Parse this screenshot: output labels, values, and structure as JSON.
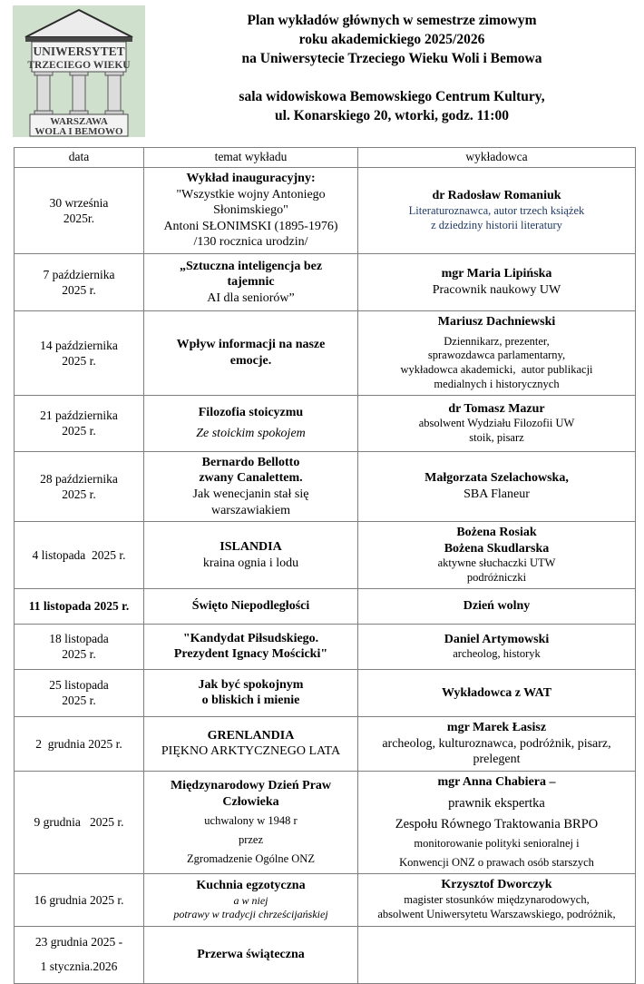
{
  "colors": {
    "accent_blue": "#1F3864",
    "logo_bg": "#cfe0cc",
    "table_border": "#7f7f7f"
  },
  "header": {
    "logo": {
      "arch_line1": "UNIWERSYTET",
      "arch_line2": "TRZECIEGO WIEKU",
      "base_line1": "WARSZAWA",
      "base_line2": "WOLA I BEMOWO"
    },
    "title_lines": [
      "Plan wykładów głównych w semestrze zimowym",
      "roku akademickiego 2025/2026",
      "na Uniwersytecie Trzeciego Wieku Woli i Bemowa"
    ],
    "subtitle_lines": [
      "sala widowiskowa Bemowskiego Centrum Kultury,",
      "ul. Konarskiego 20, wtorki, godz. 11:00"
    ]
  },
  "table": {
    "columns": [
      "data",
      "temat wykładu",
      "wykładowca"
    ],
    "rows": [
      {
        "date": [
          {
            "t": "30 września"
          },
          {
            "t": "2025r."
          }
        ],
        "topic": [
          {
            "t": "Wykład inauguracyjny:",
            "c": "b"
          },
          {
            "t": "\"Wszystkie wojny Antoniego"
          },
          {
            "t": "Słonimskiego\""
          },
          {
            "t": "Antoni SŁONIMSKI (1895-1976)"
          },
          {
            "t": "/130 rocznica urodzin/"
          }
        ],
        "lecturer": [
          {
            "t": "dr Radosław Romaniuk",
            "c": "b"
          },
          {
            "t": "Literaturoznawca, autor trzech książek",
            "c": "blue sm"
          },
          {
            "t": "z dziedziny historii literatury",
            "c": "blue sm"
          }
        ]
      },
      {
        "date": [
          {
            "t": "7 października"
          },
          {
            "t": "2025 r."
          }
        ],
        "topic": [
          {
            "t": "„Sztuczna inteligencja bez",
            "c": "b"
          },
          {
            "t": "tajemnic",
            "c": "b"
          },
          {
            "t": "AI dla seniorów”"
          }
        ],
        "lecturer": [
          {
            "t": "mgr Maria Lipińska",
            "c": "b"
          },
          {
            "t": "Pracownik naukowy UW"
          }
        ]
      },
      {
        "date": [
          {
            "t": "14 października"
          },
          {
            "t": "2025 r."
          }
        ],
        "topic": [
          {
            "t": "Wpływ informacji na nasze",
            "c": "b"
          },
          {
            "t": "emocje.",
            "c": "b"
          }
        ],
        "lecturer": [
          {
            "t": "Mariusz Dachniewski",
            "c": "b"
          },
          {
            "t": "Dziennikarz, prezenter,",
            "c": "sm gap"
          },
          {
            "t": "sprawozdawca parlamentarny,",
            "c": "sm"
          },
          {
            "t": "wykładowca akademicki,  autor publikacji",
            "c": "sm"
          },
          {
            "t": "medialnych i historycznych",
            "c": "sm"
          }
        ]
      },
      {
        "date": [
          {
            "t": "21 października"
          },
          {
            "t": "2025 r."
          }
        ],
        "topic": [
          {
            "t": "Filozofia stoicyzmu",
            "c": "b"
          },
          {
            "t": "Ze stoickim spokojem",
            "c": "i gap"
          }
        ],
        "lecturer": [
          {
            "t": "dr Tomasz Mazur",
            "c": "b"
          },
          {
            "t": "absolwent Wydziału Filozofii UW",
            "c": "sm"
          },
          {
            "t": "stoik, pisarz",
            "c": "sm"
          }
        ]
      },
      {
        "date": [
          {
            "t": "28 października"
          },
          {
            "t": "2025 r."
          }
        ],
        "topic": [
          {
            "t": "Bernardo Bellotto",
            "c": "b"
          },
          {
            "t": "zwany Canalettem.",
            "c": "b"
          },
          {
            "t": "Jak wenecjanin stał się"
          },
          {
            "t": "warszawiakiem"
          }
        ],
        "lecturer": [
          {
            "t": "Małgorzata Szelachowska,",
            "c": "b"
          },
          {
            "t": "SBA Flaneur"
          }
        ]
      },
      {
        "date": [
          {
            "t": "4 listopada  2025 r."
          }
        ],
        "topic": [
          {
            "t": "ISLANDIA",
            "c": "b"
          },
          {
            "t": "kraina ognia i lodu"
          }
        ],
        "lecturer": [
          {
            "t": "Bożena Rosiak",
            "c": "b"
          },
          {
            "t": "Bożena Skudlarska",
            "c": "b"
          },
          {
            "t": "aktywne słuchaczki UTW",
            "c": "sm"
          },
          {
            "t": "podróżniczki",
            "c": "sm"
          }
        ]
      },
      {
        "date": [
          {
            "t": "11 listopada 2025 r.",
            "c": "b"
          }
        ],
        "topic": [
          {
            "t": "Święto Niepodległości",
            "c": "b"
          }
        ],
        "lecturer": [
          {
            "t": "Dzień wolny",
            "c": "b"
          }
        ]
      },
      {
        "date": [
          {
            "t": "18 listopada"
          },
          {
            "t": "2025 r."
          }
        ],
        "topic": [
          {
            "t": "\"Kandydat Piłsudskiego.",
            "c": "b"
          },
          {
            "t": "Prezydent Ignacy Mościcki\"",
            "c": "b"
          }
        ],
        "lecturer": [
          {
            "t": "Daniel Artymowski",
            "c": "b"
          },
          {
            "t": "archeolog, historyk",
            "c": "sm"
          }
        ]
      },
      {
        "date": [
          {
            "t": "25 listopada"
          },
          {
            "t": "2025 r."
          }
        ],
        "topic": [
          {
            "t": "Jak być spokojnym",
            "c": "b"
          },
          {
            "t": "o bliskich i mienie",
            "c": "b"
          }
        ],
        "lecturer": [
          {
            "t": "Wykładowca z WAT",
            "c": "b"
          }
        ]
      },
      {
        "date": [
          {
            "t": "2  grudnia 2025 r."
          }
        ],
        "topic": [
          {
            "t": "GRENLANDIA",
            "c": "b"
          },
          {
            "t": "PIĘKNO ARKTYCZNEGO LATA"
          }
        ],
        "lecturer": [
          {
            "t": "mgr Marek Łasisz",
            "c": "b"
          },
          {
            "t": "archeolog, kulturoznawca, podróżnik, pisarz,"
          },
          {
            "t": "prelegent"
          }
        ]
      },
      {
        "date": [
          {
            "t": "9 grudnia   2025 r."
          }
        ],
        "topic": [
          {
            "t": "Międzynarodowy Dzień Praw",
            "c": "b"
          },
          {
            "t": "Człowieka",
            "c": "b"
          },
          {
            "t": "uchwalony w 1948 r",
            "c": "sm gap"
          },
          {
            "t": "przez",
            "c": "sm gap"
          },
          {
            "t": "Zgromadzenie Ogólne ONZ",
            "c": "sm gap"
          }
        ],
        "lecturer": [
          {
            "t": "mgr Anna Chabiera –",
            "c": "b"
          },
          {
            "t": "prawnik ekspertka",
            "c": "md gap"
          },
          {
            "t": "Zespołu Równego Traktowania BRPO",
            "c": "md gap"
          },
          {
            "t": "monitorowanie polityki senioralnej i",
            "c": "sm gap"
          },
          {
            "t": "Konwencji ONZ o prawach osób starszych",
            "c": "sm gap"
          }
        ]
      },
      {
        "date": [
          {
            "t": "16 grudnia 2025 r."
          }
        ],
        "topic": [
          {
            "t": "Kuchnia egzotyczna",
            "c": "b"
          },
          {
            "t": "a w niej",
            "c": "i xs"
          },
          {
            "t": "potrawy w tradycji chrześcijańskiej",
            "c": "i xs"
          }
        ],
        "lecturer": [
          {
            "t": "Krzysztof Dworczyk",
            "c": "b"
          },
          {
            "t": "magister stosunków międzynarodowych,",
            "c": "sm"
          },
          {
            "t": "absolwent Uniwersytetu Warszawskiego, podróżnik,",
            "c": "sm"
          }
        ]
      },
      {
        "date": [
          {
            "t": "23 grudnia 2025 -",
            "c": "tall"
          },
          {
            "t": "1 stycznia.2026",
            "c": "tall"
          }
        ],
        "topic": [
          {
            "t": "Przerwa świąteczna",
            "c": "b"
          }
        ],
        "lecturer": []
      }
    ]
  }
}
